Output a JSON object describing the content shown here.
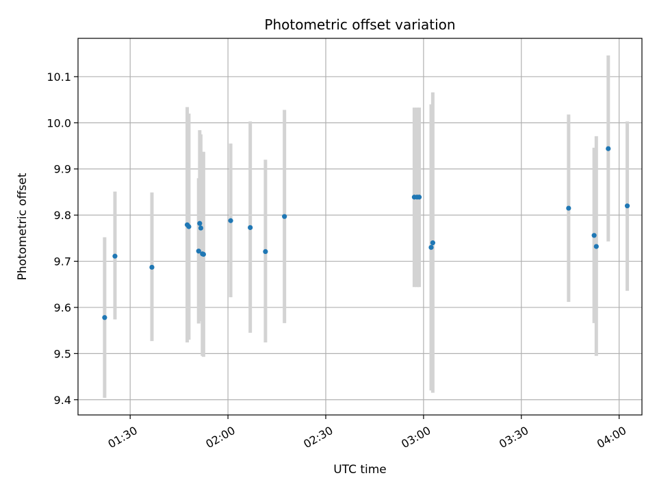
{
  "chart_data": {
    "type": "scatter",
    "title": "Photometric offset variation",
    "xlabel": "UTC time",
    "ylabel": "Photometric offset",
    "x_axis": "time",
    "xlim": [
      "01:14",
      "04:07"
    ],
    "ylim": [
      9.367,
      10.183
    ],
    "grid": true,
    "xticks": [
      "01:30",
      "02:00",
      "02:30",
      "03:00",
      "03:30",
      "04:00"
    ],
    "yticks": [
      9.4,
      9.5,
      9.6,
      9.7,
      9.8,
      9.9,
      10.0,
      10.1
    ],
    "colors": {
      "point": "#1f77b4",
      "errorbar": "#d3d3d3",
      "grid": "#b0b0b0"
    },
    "points": [
      {
        "time": "01:22:10",
        "y": 9.578,
        "ylow": 9.404,
        "yhigh": 9.752
      },
      {
        "time": "01:25:20",
        "y": 9.711,
        "ylow": 9.574,
        "yhigh": 9.851
      },
      {
        "time": "01:36:40",
        "y": 9.687,
        "ylow": 9.527,
        "yhigh": 9.849
      },
      {
        "time": "01:47:30",
        "y": 9.779,
        "ylow": 9.524,
        "yhigh": 10.034
      },
      {
        "time": "01:48:00",
        "y": 9.775,
        "ylow": 9.53,
        "yhigh": 10.02
      },
      {
        "time": "01:51:00",
        "y": 9.722,
        "ylow": 9.565,
        "yhigh": 9.88
      },
      {
        "time": "01:51:20",
        "y": 9.782,
        "ylow": 9.58,
        "yhigh": 9.984
      },
      {
        "time": "01:51:40",
        "y": 9.772,
        "ylow": 9.57,
        "yhigh": 9.975
      },
      {
        "time": "01:52:10",
        "y": 9.716,
        "ylow": 9.495,
        "yhigh": 9.937
      },
      {
        "time": "01:52:30",
        "y": 9.715,
        "ylow": 9.493,
        "yhigh": 9.937
      },
      {
        "time": "02:00:50",
        "y": 9.788,
        "ylow": 9.622,
        "yhigh": 9.955
      },
      {
        "time": "02:06:50",
        "y": 9.773,
        "ylow": 9.545,
        "yhigh": 10.003
      },
      {
        "time": "02:11:30",
        "y": 9.721,
        "ylow": 9.524,
        "yhigh": 9.92
      },
      {
        "time": "02:17:20",
        "y": 9.797,
        "ylow": 9.566,
        "yhigh": 10.028
      },
      {
        "time": "02:57:10",
        "y": 9.839,
        "ylow": 9.644,
        "yhigh": 10.033
      },
      {
        "time": "02:58:00",
        "y": 9.839,
        "ylow": 9.644,
        "yhigh": 10.033
      },
      {
        "time": "02:58:40",
        "y": 9.839,
        "ylow": 9.644,
        "yhigh": 10.033
      },
      {
        "time": "03:02:20",
        "y": 9.73,
        "ylow": 9.42,
        "yhigh": 10.04
      },
      {
        "time": "03:02:50",
        "y": 9.74,
        "ylow": 9.415,
        "yhigh": 10.066
      },
      {
        "time": "03:44:30",
        "y": 9.815,
        "ylow": 9.612,
        "yhigh": 10.018
      },
      {
        "time": "03:52:20",
        "y": 9.756,
        "ylow": 9.566,
        "yhigh": 9.946
      },
      {
        "time": "03:53:00",
        "y": 9.732,
        "ylow": 9.495,
        "yhigh": 9.971
      },
      {
        "time": "03:56:40",
        "y": 9.944,
        "ylow": 9.743,
        "yhigh": 10.146
      },
      {
        "time": "04:02:30",
        "y": 9.82,
        "ylow": 9.636,
        "yhigh": 10.003
      }
    ]
  }
}
